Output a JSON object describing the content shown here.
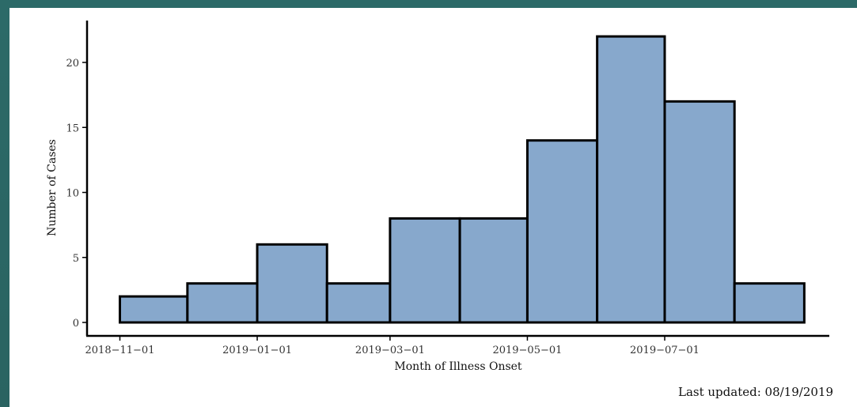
{
  "chart_data": {
    "type": "bar",
    "xlabel": "Month of Illness Onset",
    "ylabel": "Number of Cases",
    "ylim": [
      0,
      23
    ],
    "yticks": [
      0,
      5,
      10,
      15,
      20
    ],
    "bin_starts": [
      "2018-11-01",
      "2018-12-01",
      "2019-01-01",
      "2019-02-01",
      "2019-03-01",
      "2019-04-01",
      "2019-05-01",
      "2019-06-01",
      "2019-07-01",
      "2019-08-01"
    ],
    "bin_end": "2019-09-01",
    "values": [
      2,
      3,
      6,
      3,
      8,
      8,
      14,
      22,
      17,
      3
    ],
    "xticks": [
      "2018-11-01",
      "2019-01-01",
      "2019-03-01",
      "2019-05-01",
      "2019-07-01"
    ],
    "tick_labels": [
      "2018−11−01",
      "2019−01−01",
      "2019−03−01",
      "2019−05−01",
      "2019−07−01"
    ],
    "bar_color": "#87a8cc",
    "edge_color": "#000000",
    "grid": false,
    "legend": "none"
  },
  "footer": {
    "last_updated": "Last updated: 08/19/2019"
  }
}
